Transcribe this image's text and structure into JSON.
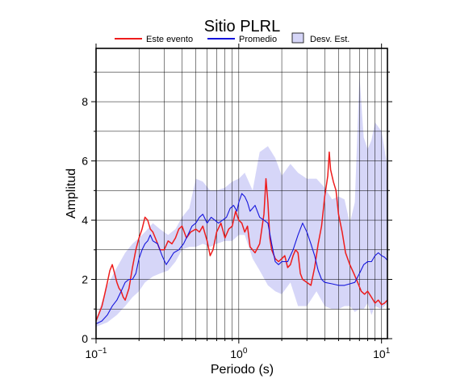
{
  "chart_data": {
    "type": "line",
    "title": "Sitio PLRL",
    "xlabel": "Periodo (s)",
    "ylabel": "Amplitud",
    "xscale": "log",
    "xlim": [
      0.1,
      11
    ],
    "ylim": [
      0,
      9.8
    ],
    "grid": true,
    "legend_placement": "top",
    "x_ticks": [
      {
        "value": 0.1,
        "base": "10",
        "exp": "−1"
      },
      {
        "value": 1,
        "base": "10",
        "exp": "0"
      },
      {
        "value": 10,
        "base": "10",
        "exp": "1"
      }
    ],
    "y_ticks": [
      0,
      2,
      4,
      6,
      8
    ],
    "legend": [
      {
        "label": "Este evento",
        "kind": "line",
        "color": "#ee1c1c"
      },
      {
        "label": "Promedio",
        "kind": "line",
        "color": "#1414dc"
      },
      {
        "label": "Desv. Est.",
        "kind": "patch",
        "color": "#d6d6f8"
      }
    ],
    "band": {
      "name": "Desv. Est.",
      "color": "#d6d6f8",
      "x": [
        0.1,
        0.12,
        0.14,
        0.16,
        0.18,
        0.2,
        0.22,
        0.25,
        0.28,
        0.32,
        0.36,
        0.4,
        0.45,
        0.5,
        0.56,
        0.63,
        0.7,
        0.8,
        0.9,
        1.0,
        1.1,
        1.25,
        1.4,
        1.6,
        1.8,
        2.0,
        2.3,
        2.6,
        3.0,
        3.5,
        4.0,
        4.5,
        5.0,
        5.5,
        6.0,
        6.5,
        7.0,
        7.5,
        8.0,
        8.5,
        9.0,
        10.0,
        11.0
      ],
      "upper": [
        0.65,
        1.8,
        2.4,
        2.9,
        3.2,
        3.4,
        3.6,
        3.9,
        3.7,
        3.5,
        3.7,
        4.1,
        4.4,
        5.4,
        5.3,
        5.0,
        5.0,
        5.1,
        5.3,
        5.4,
        5.6,
        5.0,
        6.3,
        6.5,
        6.1,
        5.5,
        5.9,
        5.6,
        5.4,
        5.4,
        5.1,
        4.7,
        4.8,
        4.7,
        3.9,
        4.6,
        8.9,
        6.8,
        6.4,
        6.7,
        7.3,
        7.0,
        5.8
      ],
      "lower": [
        0.4,
        0.55,
        0.8,
        1.1,
        1.4,
        1.6,
        1.9,
        2.1,
        2.2,
        2.3,
        2.6,
        3.0,
        3.1,
        3.1,
        3.2,
        3.1,
        3.2,
        3.3,
        3.3,
        3.5,
        3.5,
        2.7,
        2.3,
        1.8,
        1.6,
        1.5,
        1.9,
        1.1,
        1.1,
        1.6,
        1.1,
        1.0,
        1.0,
        1.1,
        1.1,
        0.9,
        1.0,
        1.0,
        1.2,
        0.8,
        1.1,
        1.0,
        1.2
      ]
    },
    "series": [
      {
        "name": "Este evento",
        "color": "#ee1c1c",
        "x": [
          0.1,
          0.105,
          0.11,
          0.115,
          0.12,
          0.125,
          0.13,
          0.135,
          0.14,
          0.145,
          0.15,
          0.155,
          0.16,
          0.17,
          0.18,
          0.19,
          0.2,
          0.21,
          0.22,
          0.23,
          0.24,
          0.25,
          0.26,
          0.27,
          0.28,
          0.3,
          0.32,
          0.34,
          0.36,
          0.38,
          0.4,
          0.43,
          0.46,
          0.5,
          0.53,
          0.56,
          0.6,
          0.63,
          0.66,
          0.7,
          0.75,
          0.8,
          0.85,
          0.9,
          0.95,
          1.0,
          1.05,
          1.1,
          1.15,
          1.2,
          1.3,
          1.4,
          1.5,
          1.55,
          1.6,
          1.65,
          1.7,
          1.8,
          1.9,
          2.0,
          2.1,
          2.2,
          2.3,
          2.4,
          2.5,
          2.6,
          2.7,
          2.8,
          3.0,
          3.2,
          3.4,
          3.6,
          3.8,
          4.0,
          4.2,
          4.3,
          4.4,
          4.6,
          4.8,
          5.0,
          5.3,
          5.6,
          6.0,
          6.4,
          6.8,
          7.2,
          7.6,
          8.0,
          8.5,
          9.0,
          9.5,
          10.0,
          10.5,
          11.0
        ],
        "y": [
          0.6,
          0.85,
          1.1,
          1.5,
          1.9,
          2.3,
          2.5,
          2.2,
          1.9,
          1.7,
          1.6,
          1.4,
          1.3,
          1.7,
          2.4,
          3.0,
          3.4,
          3.7,
          4.1,
          4.0,
          3.7,
          3.6,
          3.4,
          3.2,
          3.0,
          3.0,
          3.3,
          3.2,
          3.4,
          3.7,
          3.8,
          3.4,
          3.6,
          3.7,
          3.6,
          3.8,
          3.3,
          2.8,
          3.0,
          3.6,
          3.9,
          3.4,
          3.7,
          3.8,
          4.3,
          4.0,
          3.9,
          3.6,
          3.8,
          3.1,
          2.9,
          3.2,
          4.2,
          5.4,
          4.6,
          3.4,
          3.0,
          2.7,
          2.6,
          2.7,
          2.8,
          2.4,
          2.5,
          2.8,
          3.0,
          2.9,
          2.2,
          2.0,
          1.9,
          1.8,
          2.4,
          3.2,
          3.8,
          4.8,
          5.5,
          6.3,
          5.7,
          5.3,
          5.0,
          4.2,
          3.6,
          2.9,
          2.5,
          2.2,
          1.9,
          1.6,
          1.5,
          1.6,
          1.4,
          1.2,
          1.3,
          1.15,
          1.2,
          1.3
        ]
      },
      {
        "name": "Promedio",
        "color": "#1414dc",
        "x": [
          0.1,
          0.11,
          0.12,
          0.13,
          0.14,
          0.15,
          0.16,
          0.17,
          0.18,
          0.19,
          0.2,
          0.21,
          0.22,
          0.23,
          0.24,
          0.25,
          0.27,
          0.29,
          0.31,
          0.33,
          0.35,
          0.38,
          0.41,
          0.44,
          0.47,
          0.5,
          0.53,
          0.56,
          0.6,
          0.64,
          0.68,
          0.72,
          0.77,
          0.82,
          0.87,
          0.92,
          0.97,
          1.0,
          1.05,
          1.1,
          1.15,
          1.2,
          1.3,
          1.4,
          1.5,
          1.6,
          1.7,
          1.8,
          1.9,
          2.0,
          2.2,
          2.4,
          2.6,
          2.8,
          3.0,
          3.2,
          3.4,
          3.6,
          3.8,
          4.0,
          4.5,
          5.0,
          5.5,
          6.0,
          6.5,
          7.0,
          7.5,
          8.0,
          8.5,
          9.0,
          9.5,
          10.0,
          10.5,
          11.0
        ],
        "y": [
          0.5,
          0.6,
          0.8,
          1.1,
          1.3,
          1.6,
          1.9,
          2.0,
          2.0,
          2.2,
          2.7,
          3.0,
          3.2,
          3.3,
          3.5,
          3.3,
          3.2,
          2.8,
          2.5,
          2.7,
          2.9,
          3.0,
          3.2,
          3.5,
          3.8,
          3.9,
          4.1,
          4.2,
          3.9,
          4.1,
          4.0,
          3.9,
          4.0,
          4.1,
          4.4,
          4.5,
          4.3,
          4.6,
          4.9,
          4.8,
          4.6,
          4.3,
          4.5,
          4.1,
          4.0,
          3.9,
          3.2,
          2.6,
          2.5,
          2.6,
          2.6,
          3.0,
          3.5,
          3.9,
          3.6,
          3.2,
          2.8,
          2.3,
          2.0,
          1.9,
          1.85,
          1.8,
          1.8,
          1.85,
          1.9,
          2.2,
          2.5,
          2.6,
          2.6,
          2.8,
          2.9,
          2.8,
          2.75,
          2.65
        ]
      }
    ]
  }
}
